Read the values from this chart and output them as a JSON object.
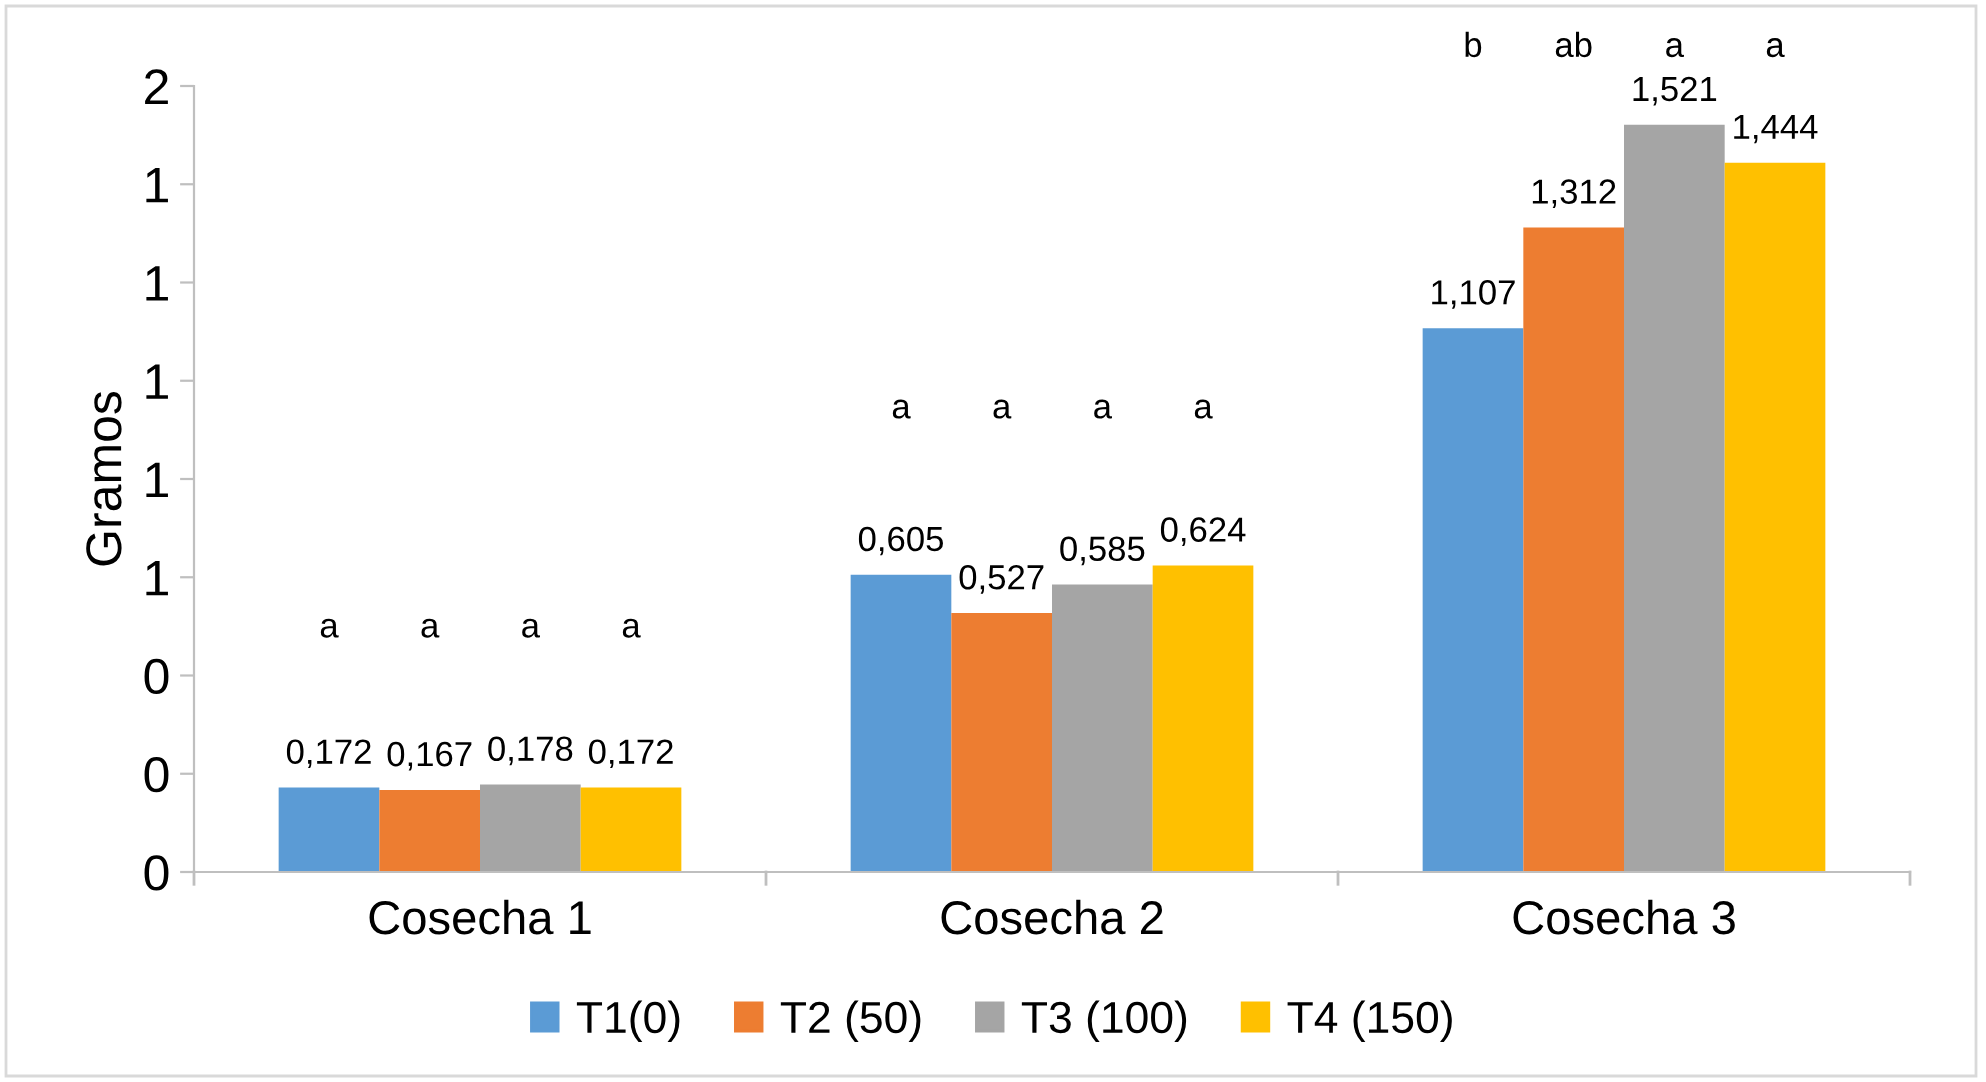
{
  "chart_data": {
    "type": "bar",
    "ylabel": "Gramos",
    "categories": [
      "Cosecha 1",
      "Cosecha 2",
      "Cosecha 3"
    ],
    "series": [
      {
        "name": "T1(0)",
        "color": "#5b9bd5",
        "values": [
          0.172,
          0.605,
          1.107
        ],
        "value_labels": [
          "0,172",
          "0,605",
          "1,107"
        ]
      },
      {
        "name": "T2 (50)",
        "color": "#ed7d31",
        "values": [
          0.167,
          0.527,
          1.312
        ],
        "value_labels": [
          "0,167",
          "0,527",
          "1,312"
        ]
      },
      {
        "name": "T3 (100)",
        "color": "#a5a5a5",
        "values": [
          0.178,
          0.585,
          1.521
        ],
        "value_labels": [
          "0,178",
          "0,585",
          "1,521"
        ]
      },
      {
        "name": "T4 (150)",
        "color": "#ffc000",
        "values": [
          0.172,
          0.624,
          1.444
        ],
        "value_labels": [
          "0,172",
          "0,624",
          "1,444"
        ]
      }
    ],
    "ylim": [
      0,
      1.6
    ],
    "yticks": [
      0,
      {
        "value": 0.2,
        "label": "0"
      },
      {
        "value": 0.4,
        "label": "0"
      },
      {
        "value": 0.6,
        "label": "1"
      },
      {
        "value": 0.8,
        "label": "1"
      },
      {
        "value": 1.0,
        "label": "1"
      },
      {
        "value": 1.2,
        "label": "1"
      },
      {
        "value": 1.4,
        "label": "1"
      },
      {
        "value": 1.6,
        "label": "2"
      }
    ],
    "annotations": [
      "a",
      "a",
      "a",
      "a",
      "a",
      "a",
      "a",
      "a",
      "b",
      "ab",
      "a",
      "a"
    ],
    "grid": false,
    "legend": "bottom"
  }
}
